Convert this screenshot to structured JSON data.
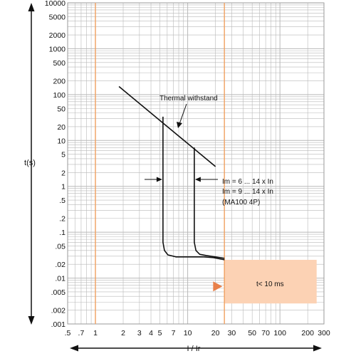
{
  "chart_data": {
    "type": "line",
    "xlabel": "I / Ir",
    "ylabel": "t(s)",
    "x_scale": "log",
    "y_scale": "log",
    "xlim": [
      0.5,
      300
    ],
    "ylim": [
      0.001,
      10000
    ],
    "grid": true,
    "x_ticks": [
      {
        "value": 0.5,
        "label": ".5"
      },
      {
        "value": 0.7,
        "label": ".7"
      },
      {
        "value": 1,
        "label": "1"
      },
      {
        "value": 2,
        "label": "2"
      },
      {
        "value": 3,
        "label": "3"
      },
      {
        "value": 4,
        "label": "4"
      },
      {
        "value": 5,
        "label": "5"
      },
      {
        "value": 7,
        "label": "7"
      },
      {
        "value": 10,
        "label": "10"
      },
      {
        "value": 20,
        "label": "20"
      },
      {
        "value": 30,
        "label": "30"
      },
      {
        "value": 50,
        "label": "50"
      },
      {
        "value": 70,
        "label": "70"
      },
      {
        "value": 100,
        "label": "100"
      },
      {
        "value": 200,
        "label": "200"
      },
      {
        "value": 300,
        "label": "300"
      }
    ],
    "y_ticks": [
      {
        "value": 10000,
        "label": "10000"
      },
      {
        "value": 5000,
        "label": "5000"
      },
      {
        "value": 2000,
        "label": "2000"
      },
      {
        "value": 1000,
        "label": "1000"
      },
      {
        "value": 500,
        "label": "500"
      },
      {
        "value": 200,
        "label": "200"
      },
      {
        "value": 100,
        "label": "100"
      },
      {
        "value": 50,
        "label": "50"
      },
      {
        "value": 20,
        "label": "20"
      },
      {
        "value": 10,
        "label": "10"
      },
      {
        "value": 5,
        "label": "5"
      },
      {
        "value": 2,
        "label": "2"
      },
      {
        "value": 1,
        "label": "1"
      },
      {
        "value": 0.5,
        "label": ".5"
      },
      {
        "value": 0.2,
        "label": ".2"
      },
      {
        "value": 0.1,
        "label": ".1"
      },
      {
        "value": 0.05,
        "label": ".05"
      },
      {
        "value": 0.02,
        "label": ".02"
      },
      {
        "value": 0.01,
        "label": ".01"
      },
      {
        "value": 0.005,
        "label": ".005"
      },
      {
        "value": 0.002,
        "label": ".002"
      },
      {
        "value": 0.001,
        "label": ".001"
      }
    ],
    "reference_lines": [
      {
        "axis": "x",
        "value": 1,
        "color": "#f0a060"
      },
      {
        "axis": "x",
        "value": 25,
        "color": "#f0a060"
      }
    ],
    "series": [
      {
        "name": "Thermal withstand",
        "color": "#111111",
        "points": [
          [
            1.8,
            150
          ],
          [
            20,
            2.7
          ]
        ]
      },
      {
        "name": "",
        "color": "#111111",
        "points": [
          [
            5.4,
            33
          ],
          [
            5.4,
            0.06
          ],
          [
            5.6,
            0.04
          ],
          [
            6.1,
            0.032
          ],
          [
            7.5,
            0.029
          ],
          [
            15,
            0.029
          ],
          [
            19,
            0.028
          ],
          [
            25,
            0.025
          ]
        ]
      },
      {
        "name": "",
        "color": "#111111",
        "points": [
          [
            11.8,
            7
          ],
          [
            11.8,
            0.06
          ],
          [
            12.3,
            0.04
          ],
          [
            13.5,
            0.033
          ],
          [
            16,
            0.031
          ],
          [
            20,
            0.029
          ],
          [
            25,
            0.027
          ]
        ]
      }
    ],
    "region": {
      "x_from": 25,
      "x_to": 250,
      "y_from": 0.0028,
      "y_to": 0.025,
      "fill": "#fcd2b4"
    },
    "annotations": {
      "thermal_withstand": "Thermal withstand",
      "im_line1": "Im = 6 ... 14 x In",
      "im_line2": "Im = 9 ... 14 x In",
      "im_line3": "(MA100 4P)",
      "region_label": "t< 10 ms"
    },
    "colors": {
      "grid": "#b9b9b9",
      "reference_line": "#f0a060",
      "region_fill": "#fcd2b4",
      "marker": "#e8804a",
      "curve": "#111111"
    }
  }
}
